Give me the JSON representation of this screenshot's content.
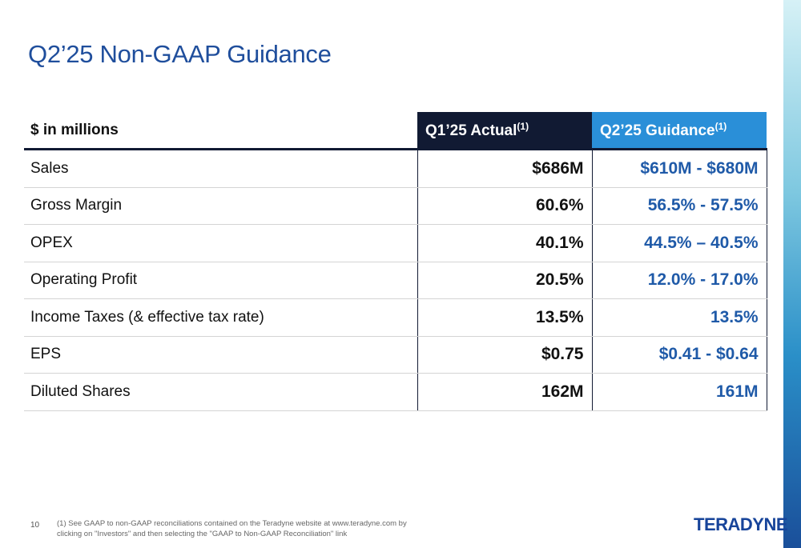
{
  "slide": {
    "title": "Q2’25 Non-GAAP Guidance",
    "page_number": "10",
    "footnote_line1": "(1)  See GAAP to non-GAAP reconciliations contained on the Teradyne website at www.teradyne.com by",
    "footnote_line2": "clicking on \"Investors\" and then selecting the \"GAAP to Non-GAAP Reconciliation\" link",
    "logo_text": "TERADYNE"
  },
  "table": {
    "header": {
      "label": "$ in millions",
      "actual": "Q1’25 Actual",
      "actual_sup": "(1)",
      "guidance": "Q2’25 Guidance",
      "guidance_sup": "(1)"
    },
    "rows": [
      {
        "metric": "Sales",
        "actual": "$686M",
        "guidance": "$610M - $680M"
      },
      {
        "metric": "Gross Margin",
        "actual": "60.6%",
        "guidance": "56.5% - 57.5%"
      },
      {
        "metric": "OPEX",
        "actual": "40.1%",
        "guidance": "44.5% – 40.5%"
      },
      {
        "metric": "Operating Profit",
        "actual": "20.5%",
        "guidance": "12.0% - 17.0%"
      },
      {
        "metric": "Income Taxes (& effective tax rate)",
        "actual": "13.5%",
        "guidance": "13.5%"
      },
      {
        "metric": "EPS",
        "actual": "$0.75",
        "guidance": "$0.41 - $0.64"
      },
      {
        "metric": "Diluted Shares",
        "actual": "162M",
        "guidance": "161M"
      }
    ]
  },
  "colors": {
    "title": "#1f4e9c",
    "actual_header_bg": "#111a33",
    "guidance_header_bg": "#2a8fd8",
    "guidance_values": "#1f5aa8"
  }
}
